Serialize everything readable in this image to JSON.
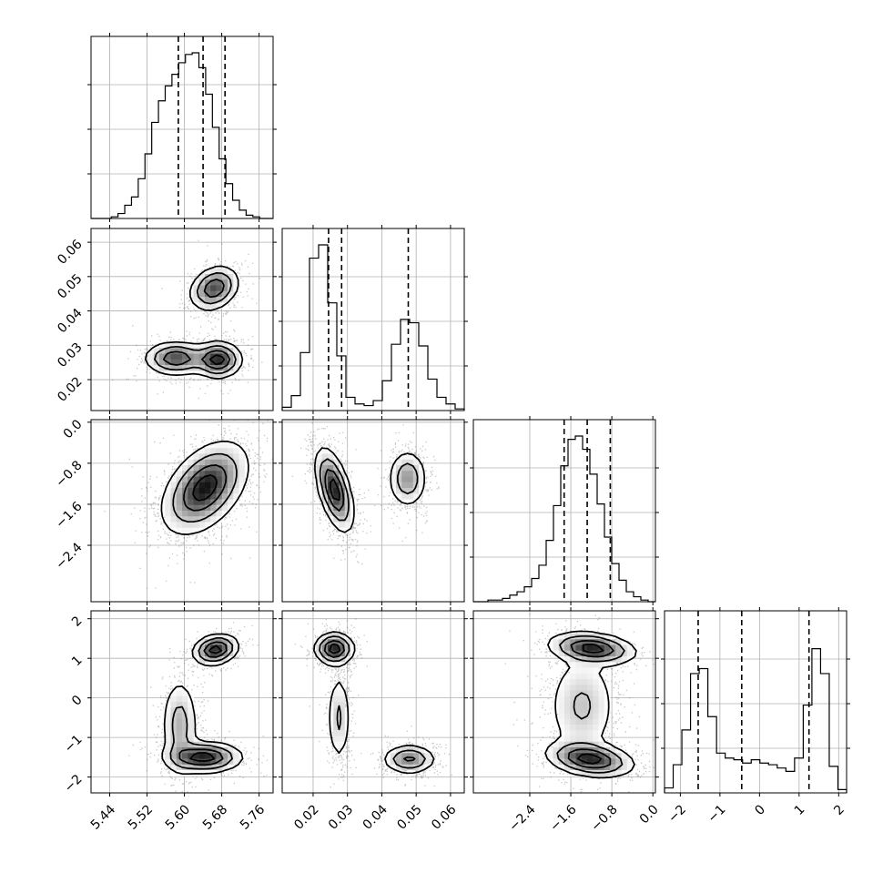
{
  "chart_data": {
    "type": "corner",
    "title": "",
    "parameters": [
      {
        "range": [
          5.4,
          5.79
        ],
        "ticks": [
          5.44,
          5.52,
          5.6,
          5.68,
          5.76
        ],
        "tick_labels": [
          "5.44",
          "5.52",
          "5.60",
          "5.68",
          "5.76"
        ],
        "quantiles": [
          5.587,
          5.64,
          5.687
        ],
        "histogram": [
          0,
          0,
          0,
          0.01,
          0.03,
          0.08,
          0.13,
          0.24,
          0.39,
          0.58,
          0.71,
          0.8,
          0.87,
          0.94,
          0.99,
          1.0,
          0.91,
          0.75,
          0.55,
          0.36,
          0.21,
          0.11,
          0.05,
          0.02,
          0.01,
          0,
          0
        ]
      },
      {
        "range": [
          0.011,
          0.064
        ],
        "ticks": [
          0.02,
          0.03,
          0.04,
          0.05,
          0.06
        ],
        "tick_labels": [
          "0.02",
          "0.03",
          "0.04",
          "0.05",
          "0.06"
        ],
        "quantiles": [
          0.0245,
          0.0283,
          0.0477
        ],
        "histogram": [
          0.02,
          0.09,
          0.35,
          0.92,
          1.0,
          0.65,
          0.33,
          0.08,
          0.04,
          0.03,
          0.06,
          0.18,
          0.4,
          0.55,
          0.53,
          0.39,
          0.19,
          0.08,
          0.04,
          0.01
        ]
      },
      {
        "range": [
          -3.5,
          0.05
        ],
        "ticks": [
          -2.4,
          -1.6,
          -0.8,
          0.0
        ],
        "tick_labels": [
          "−2.4",
          "−1.6",
          "−0.8",
          "0.0"
        ],
        "quantiles": [
          -1.73,
          -1.28,
          -0.83
        ],
        "histogram": [
          0,
          0,
          0.01,
          0.01,
          0.02,
          0.04,
          0.06,
          0.09,
          0.14,
          0.22,
          0.37,
          0.58,
          0.82,
          0.98,
          1.0,
          0.92,
          0.77,
          0.59,
          0.39,
          0.23,
          0.13,
          0.06,
          0.03,
          0.01,
          0
        ]
      },
      {
        "range": [
          -2.4,
          2.2
        ],
        "ticks": [
          -2,
          -1,
          0,
          1,
          2
        ],
        "tick_labels": [
          "−2",
          "−1",
          "0",
          "1",
          "2"
        ],
        "quantiles": [
          -1.55,
          -0.45,
          1.25
        ],
        "histogram": [
          0.03,
          0.17,
          0.38,
          0.72,
          0.75,
          0.46,
          0.24,
          0.21,
          0.2,
          0.18,
          0.2,
          0.18,
          0.17,
          0.15,
          0.13,
          0.21,
          0.53,
          0.87,
          0.72,
          0.16,
          0.02
        ]
      }
    ],
    "blobs": {
      "1_0": [
        {
          "mx": 5.664,
          "my": 0.0466,
          "sx": 0.026,
          "sy": 0.0032,
          "r": 0.25,
          "w": 0.55
        },
        {
          "mx": 5.582,
          "my": 0.0262,
          "sx": 0.033,
          "sy": 0.0024,
          "r": 0.0,
          "w": 0.55
        },
        {
          "mx": 5.672,
          "my": 0.0258,
          "sx": 0.025,
          "sy": 0.0026,
          "r": 0.0,
          "w": 0.65
        }
      ],
      "2_0": [
        {
          "mx": 5.644,
          "my": -1.28,
          "sx": 0.045,
          "sy": 0.44,
          "r": 0.45,
          "w": 1.0
        }
      ],
      "2_1": [
        {
          "mx": 0.0262,
          "my": -1.32,
          "sx": 0.0027,
          "sy": 0.4,
          "r": -0.55,
          "w": 1.0
        },
        {
          "mx": 0.0475,
          "my": -1.1,
          "sx": 0.0028,
          "sy": 0.28,
          "r": 0.0,
          "w": 0.55
        }
      ],
      "3_0": [
        {
          "mx": 5.667,
          "my": 1.22,
          "sx": 0.024,
          "sy": 0.19,
          "r": 0.2,
          "w": 0.8
        },
        {
          "mx": 5.59,
          "my": -0.7,
          "sx": 0.02,
          "sy": 0.62,
          "r": 0.0,
          "w": 0.35
        },
        {
          "mx": 5.642,
          "my": -1.5,
          "sx": 0.04,
          "sy": 0.19,
          "r": 0.0,
          "w": 0.8
        }
      ],
      "3_1": [
        {
          "mx": 0.0262,
          "my": 1.24,
          "sx": 0.0028,
          "sy": 0.2,
          "r": 0.0,
          "w": 0.85
        },
        {
          "mx": 0.0275,
          "my": -0.5,
          "sx": 0.0017,
          "sy": 0.6,
          "r": 0.0,
          "w": 0.3
        },
        {
          "mx": 0.048,
          "my": -1.55,
          "sx": 0.0038,
          "sy": 0.18,
          "r": 0.0,
          "w": 0.55
        }
      ],
      "3_2": [
        {
          "mx": -1.18,
          "my": 1.25,
          "sx": 0.42,
          "sy": 0.2,
          "r": -0.25,
          "w": 0.8
        },
        {
          "mx": -1.38,
          "my": -0.2,
          "sx": 0.35,
          "sy": 0.7,
          "r": 0.0,
          "w": 0.3
        },
        {
          "mx": -1.22,
          "my": -1.55,
          "sx": 0.42,
          "sy": 0.22,
          "r": -0.3,
          "w": 0.8
        }
      ]
    },
    "grid": true,
    "quantile_line_style": "dashed",
    "colors": {
      "line": "#000000",
      "grid": "#b0b0b0",
      "scatter": "#555555",
      "density_max": "#000000",
      "density_min": "#ffffff"
    }
  }
}
